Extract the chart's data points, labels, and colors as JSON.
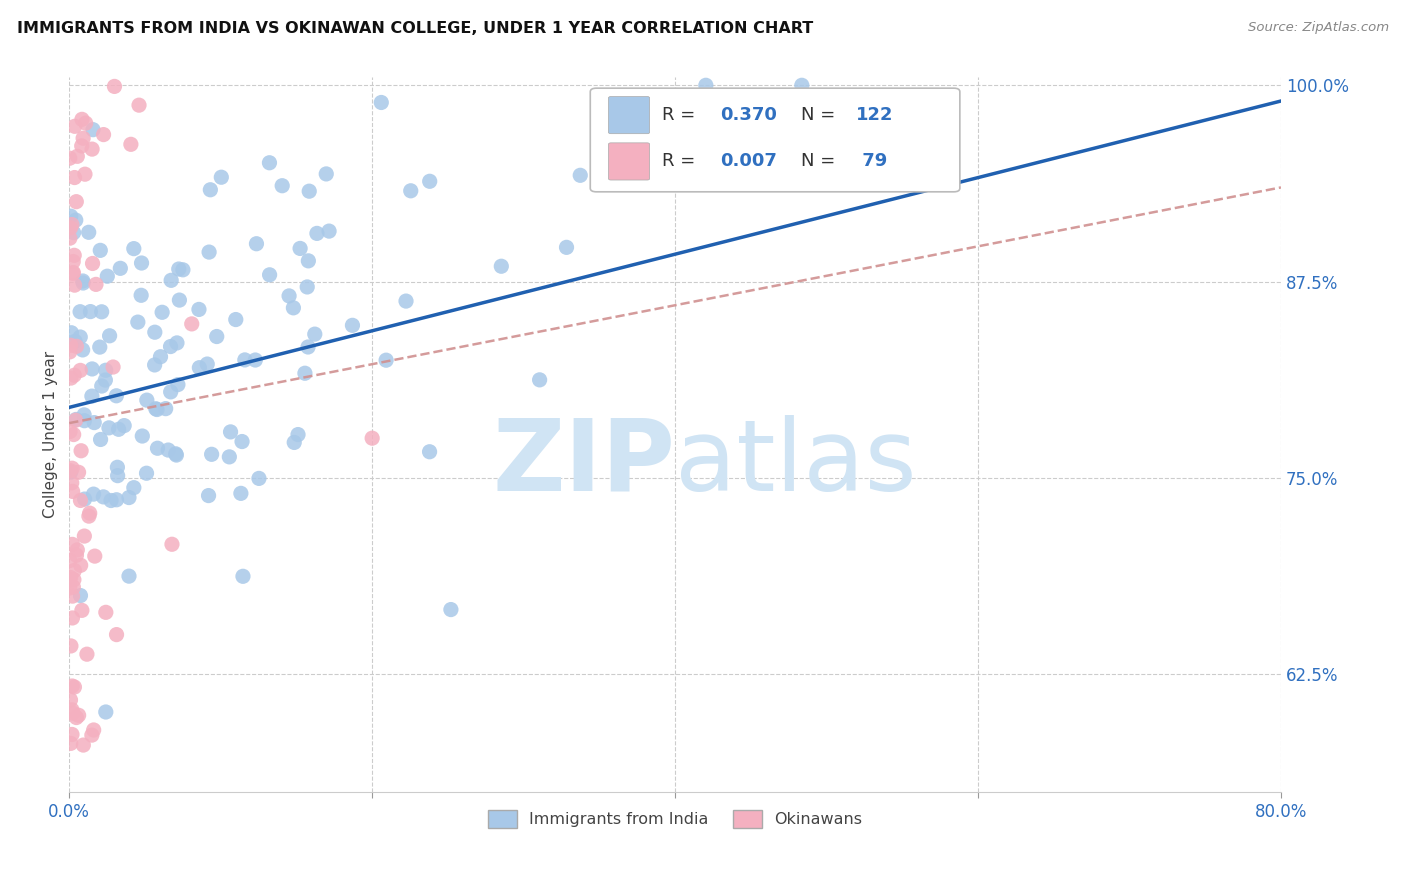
{
  "title": "IMMIGRANTS FROM INDIA VS OKINAWAN COLLEGE, UNDER 1 YEAR CORRELATION CHART",
  "source": "Source: ZipAtlas.com",
  "ylabel": "College, Under 1 year",
  "x_min": 0.0,
  "x_max": 0.8,
  "y_min": 0.55,
  "y_max": 1.005,
  "x_tick_positions": [
    0.0,
    0.2,
    0.4,
    0.6,
    0.8
  ],
  "x_tick_labels": [
    "0.0%",
    "",
    "",
    "",
    "80.0%"
  ],
  "y_tick_positions": [
    0.625,
    0.75,
    0.875,
    1.0
  ],
  "y_tick_labels": [
    "62.5%",
    "75.0%",
    "87.5%",
    "100.0%"
  ],
  "legend_R1": "0.370",
  "legend_N1": "122",
  "legend_R2": "0.007",
  "legend_N2": "79",
  "blue_color": "#a8c8e8",
  "pink_color": "#f4b0c0",
  "trendline_blue": "#2060b0",
  "trendline_pink": "#d09090",
  "watermark_zip": "ZIP",
  "watermark_atlas": "atlas",
  "background_color": "#ffffff",
  "grid_color": "#cccccc"
}
